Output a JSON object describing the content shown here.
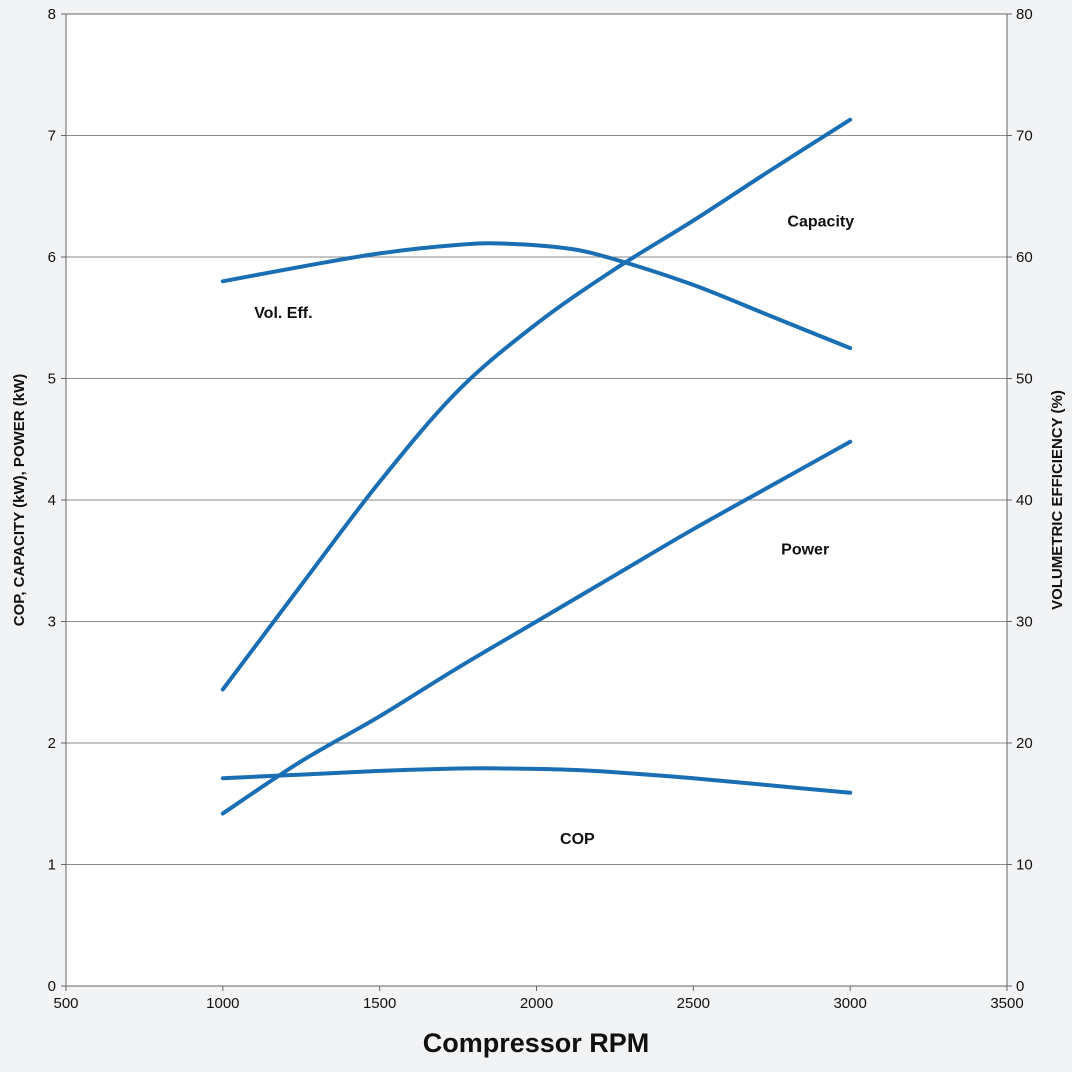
{
  "chart_data": {
    "type": "line",
    "title": "",
    "xlabel": "Compressor RPM",
    "ylabel": "COP, CAPACITY (kW), POWER (kW)",
    "y2label": "VOLUMETRIC EFFICIENCY (%)",
    "xlim": [
      500,
      3500
    ],
    "ylim": [
      0,
      8
    ],
    "y2lim": [
      0,
      80
    ],
    "xticks": [
      "500",
      "1000",
      "1500",
      "2000",
      "2500",
      "3000",
      "3500"
    ],
    "yticks": [
      "0",
      "1",
      "2",
      "3",
      "4",
      "5",
      "6",
      "7",
      "8"
    ],
    "y2ticks": [
      "0",
      "10",
      "20",
      "30",
      "40",
      "50",
      "60",
      "70",
      "80"
    ],
    "grid": "horizontal",
    "line_color": "#1a6fb4",
    "series": [
      {
        "name": "Capacity",
        "axis": "left",
        "x": [
          1000,
          1250,
          1500,
          1750,
          2000,
          2250,
          2500,
          2750,
          3000
        ],
        "y": [
          2.44,
          3.3,
          4.15,
          4.9,
          5.45,
          5.9,
          6.3,
          6.72,
          7.13
        ]
      },
      {
        "name": "Vol. Eff.",
        "axis": "right",
        "x": [
          1000,
          1250,
          1500,
          1750,
          1900,
          2100,
          2250,
          2500,
          2750,
          3000
        ],
        "y": [
          58.0,
          59.2,
          60.3,
          61.0,
          61.1,
          60.7,
          59.8,
          57.7,
          55.1,
          52.5
        ]
      },
      {
        "name": "Power",
        "axis": "left",
        "x": [
          1000,
          1250,
          1500,
          1750,
          2000,
          2250,
          2500,
          2750,
          3000
        ],
        "y": [
          1.42,
          1.85,
          2.22,
          2.62,
          3.0,
          3.38,
          3.76,
          4.12,
          4.48
        ]
      },
      {
        "name": "COP",
        "axis": "left",
        "x": [
          1000,
          1250,
          1500,
          1750,
          1900,
          2100,
          2250,
          2500,
          2750,
          3000
        ],
        "y": [
          1.71,
          1.74,
          1.77,
          1.79,
          1.79,
          1.78,
          1.76,
          1.71,
          1.65,
          1.59
        ]
      }
    ],
    "annotations": [
      {
        "text": "Capacity",
        "x": 2800,
        "y": 6.25
      },
      {
        "text": "Vol. Eff.",
        "x": 1100,
        "y": 5.5
      },
      {
        "text": "Power",
        "x": 2780,
        "y": 3.55
      },
      {
        "text": "COP",
        "x": 2075,
        "y": 1.17
      }
    ]
  }
}
